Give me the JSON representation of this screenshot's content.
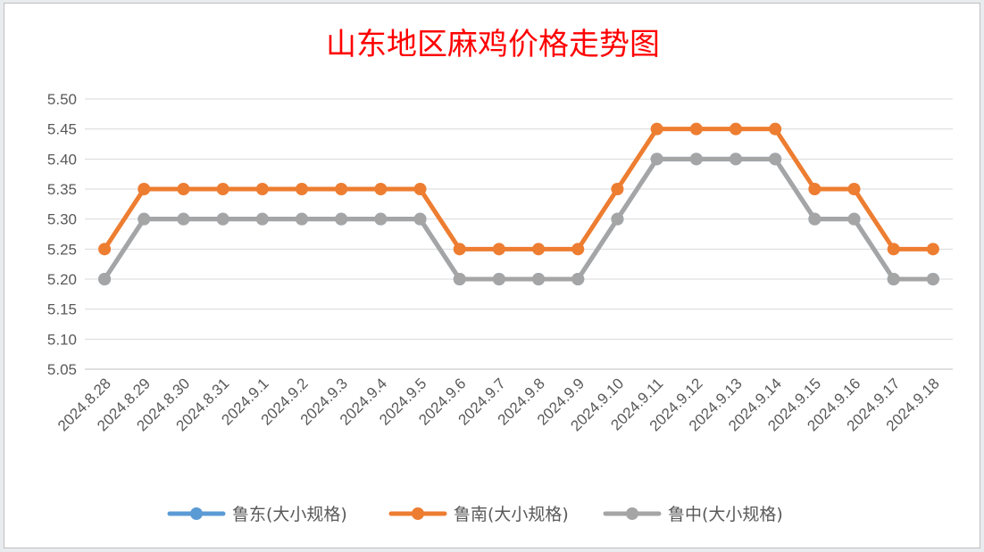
{
  "chart_data": {
    "type": "line",
    "title": "山东地区麻鸡价格走势图",
    "xlabel": "",
    "ylabel": "",
    "categories": [
      "2024.8.28",
      "2024.8.29",
      "2024.8.30",
      "2024.8.31",
      "2024.9.1",
      "2024.9.2",
      "2024.9.3",
      "2024.9.4",
      "2024.9.5",
      "2024.9.6",
      "2024.9.7",
      "2024.9.8",
      "2024.9.9",
      "2024.9.10",
      "2024.9.11",
      "2024.9.12",
      "2024.9.13",
      "2024.9.14",
      "2024.9.15",
      "2024.9.16",
      "2024.9.17",
      "2024.9.18"
    ],
    "ylim": [
      5.05,
      5.5
    ],
    "yticks": [
      "5.05",
      "5.10",
      "5.15",
      "5.20",
      "5.25",
      "5.30",
      "5.35",
      "5.40",
      "5.45",
      "5.50"
    ],
    "grid": true,
    "legend_position": "bottom",
    "series": [
      {
        "name": "鲁东(大小规格)",
        "color": "#5b9bd5",
        "values": [
          5.2,
          5.3,
          5.3,
          5.3,
          5.3,
          5.3,
          5.3,
          5.3,
          5.3,
          5.2,
          5.2,
          5.2,
          5.2,
          5.3,
          5.4,
          5.4,
          5.4,
          5.4,
          5.3,
          5.3,
          5.2,
          5.2
        ]
      },
      {
        "name": "鲁南(大小规格)",
        "color": "#ed7d31",
        "values": [
          5.25,
          5.35,
          5.35,
          5.35,
          5.35,
          5.35,
          5.35,
          5.35,
          5.35,
          5.25,
          5.25,
          5.25,
          5.25,
          5.35,
          5.45,
          5.45,
          5.45,
          5.45,
          5.35,
          5.35,
          5.25,
          5.25
        ]
      },
      {
        "name": "鲁中(大小规格)",
        "color": "#a5a5a5",
        "values": [
          5.2,
          5.3,
          5.3,
          5.3,
          5.3,
          5.3,
          5.3,
          5.3,
          5.3,
          5.2,
          5.2,
          5.2,
          5.2,
          5.3,
          5.4,
          5.4,
          5.4,
          5.4,
          5.3,
          5.3,
          5.2,
          5.2
        ]
      }
    ]
  }
}
